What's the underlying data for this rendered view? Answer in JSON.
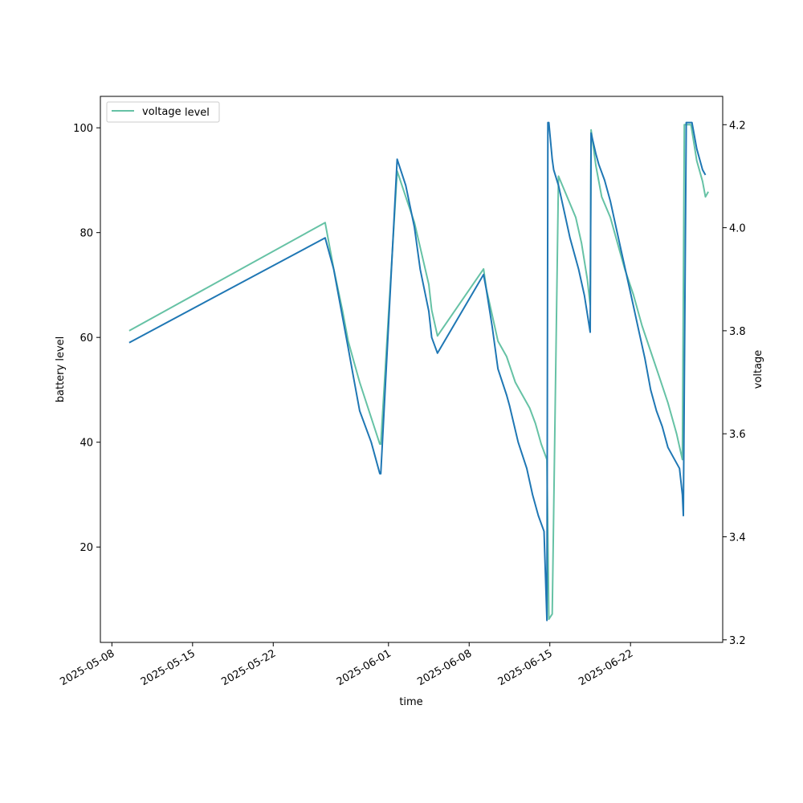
{
  "chart_data": {
    "type": "line",
    "xlabel": "time",
    "ylabel_left": "battery level",
    "ylabel_right": "voltage",
    "x_ticks": [
      "2025-05-08",
      "2025-05-15",
      "2025-05-22",
      "2025-06-01",
      "2025-06-08",
      "2025-06-15",
      "2025-06-22"
    ],
    "xlim": [
      "2025-05-07",
      "2025-06-30"
    ],
    "ylim_left": [
      1.8,
      106.0
    ],
    "yticks_left": [
      20,
      40,
      60,
      80,
      100
    ],
    "ylim_right": [
      3.195,
      4.255
    ],
    "yticks_right": [
      3.2,
      3.4,
      3.6,
      3.8,
      4.0,
      4.2
    ],
    "legend": {
      "placement": "upper-left",
      "entries": [
        "voltage",
        "level"
      ],
      "overlapping_labels": true
    },
    "colors": {
      "level": "#1f77b4",
      "voltage": "#66c2a5"
    },
    "series": [
      {
        "name": "level",
        "axis": "left",
        "x": [
          "2025-05-09 12:00",
          "2025-05-26 12:00",
          "2025-05-27 06:00",
          "2025-05-28 00:00",
          "2025-05-28 12:00",
          "2025-05-29 00:00",
          "2025-05-29 12:00",
          "2025-05-30 12:00",
          "2025-05-31 06:00",
          "2025-05-31 08:00",
          "2025-06-01 18:00",
          "2025-06-02 12:00",
          "2025-06-03 06:00",
          "2025-06-03 18:00",
          "2025-06-04 12:00",
          "2025-06-04 18:00",
          "2025-06-05 06:00",
          "2025-06-09 06:00",
          "2025-06-09 12:00",
          "2025-06-10 00:00",
          "2025-06-10 12:00",
          "2025-06-11 06:00",
          "2025-06-11 12:00",
          "2025-06-12 06:00",
          "2025-06-13 00:00",
          "2025-06-13 12:00",
          "2025-06-14 00:00",
          "2025-06-14 12:00",
          "2025-06-14 18:00",
          "2025-06-14 20:00",
          "2025-06-14 22:00",
          "2025-06-15 05:00",
          "2025-06-15 08:00",
          "2025-06-15 18:00",
          "2025-06-16 06:00",
          "2025-06-16 18:00",
          "2025-06-17 12:00",
          "2025-06-18 00:00",
          "2025-06-18 12:00",
          "2025-06-18 14:00",
          "2025-06-19 00:00",
          "2025-06-19 06:00",
          "2025-06-19 18:00",
          "2025-06-20 06:00",
          "2025-06-20 18:00",
          "2025-06-21 06:00",
          "2025-06-21 18:00",
          "2025-06-22 06:00",
          "2025-06-22 18:00",
          "2025-06-23 06:00",
          "2025-06-23 18:00",
          "2025-06-24 06:00",
          "2025-06-24 18:00",
          "2025-06-25 06:00",
          "2025-06-25 18:00",
          "2025-06-26 06:00",
          "2025-06-26 12:00",
          "2025-06-26 14:00",
          "2025-06-26 20:00",
          "2025-06-27 08:00",
          "2025-06-27 18:00",
          "2025-06-28 06:00",
          "2025-06-28 12:00"
        ],
        "y": [
          59,
          79,
          73,
          64,
          58,
          52,
          46,
          40,
          34,
          34,
          94,
          89,
          81,
          73,
          65,
          60,
          57,
          72,
          69,
          62,
          54,
          49,
          47,
          40,
          35,
          30,
          26,
          23,
          6,
          101,
          101,
          94,
          92,
          89,
          84,
          79,
          73,
          68,
          61,
          99,
          95,
          93,
          90,
          86,
          81,
          76,
          71,
          66,
          61,
          56,
          50,
          46,
          43,
          39,
          37,
          35,
          30,
          26,
          101,
          101,
          96,
          92,
          91
        ]
      },
      {
        "name": "voltage",
        "axis": "right",
        "x": [
          "2025-05-09 12:00",
          "2025-05-26 12:00",
          "2025-05-27 06:00",
          "2025-05-28 00:00",
          "2025-05-28 12:00",
          "2025-05-29 00:00",
          "2025-05-29 12:00",
          "2025-05-31 06:00",
          "2025-05-31 08:00",
          "2025-06-01 18:00",
          "2025-06-02 12:00",
          "2025-06-03 06:00",
          "2025-06-04 12:00",
          "2025-06-04 18:00",
          "2025-06-05 06:00",
          "2025-06-09 06:00",
          "2025-06-09 12:00",
          "2025-06-10 00:00",
          "2025-06-10 12:00",
          "2025-06-11 06:00",
          "2025-06-12 00:00",
          "2025-06-12 12:00",
          "2025-06-13 06:00",
          "2025-06-13 18:00",
          "2025-06-14 06:00",
          "2025-06-14 18:00",
          "2025-06-14 22:00",
          "2025-06-15 05:00",
          "2025-06-15 18:00",
          "2025-06-16 12:00",
          "2025-06-17 06:00",
          "2025-06-17 18:00",
          "2025-06-18 06:00",
          "2025-06-18 12:00",
          "2025-06-18 14:00",
          "2025-06-19 00:00",
          "2025-06-19 12:00",
          "2025-06-20 06:00",
          "2025-06-21 00:00",
          "2025-06-21 12:00",
          "2025-06-22 06:00",
          "2025-06-23 00:00",
          "2025-06-23 18:00",
          "2025-06-24 12:00",
          "2025-06-25 06:00",
          "2025-06-26 00:00",
          "2025-06-26 12:00",
          "2025-06-26 16:00",
          "2025-06-27 06:00",
          "2025-06-27 18:00",
          "2025-06-28 06:00",
          "2025-06-28 12:00",
          "2025-06-28 18:00"
        ],
        "y": [
          3.8,
          4.01,
          3.92,
          3.84,
          3.78,
          3.74,
          3.7,
          3.58,
          3.58,
          4.11,
          4.06,
          4.01,
          3.89,
          3.84,
          3.79,
          3.92,
          3.88,
          3.83,
          3.78,
          3.75,
          3.7,
          3.68,
          3.65,
          3.62,
          3.58,
          3.55,
          3.24,
          3.25,
          4.1,
          4.06,
          4.02,
          3.97,
          3.9,
          3.85,
          4.19,
          4.12,
          4.06,
          4.02,
          3.96,
          3.92,
          3.87,
          3.81,
          3.76,
          3.71,
          3.66,
          3.6,
          3.55,
          4.2,
          4.2,
          4.13,
          4.09,
          4.06,
          4.07
        ]
      }
    ]
  }
}
